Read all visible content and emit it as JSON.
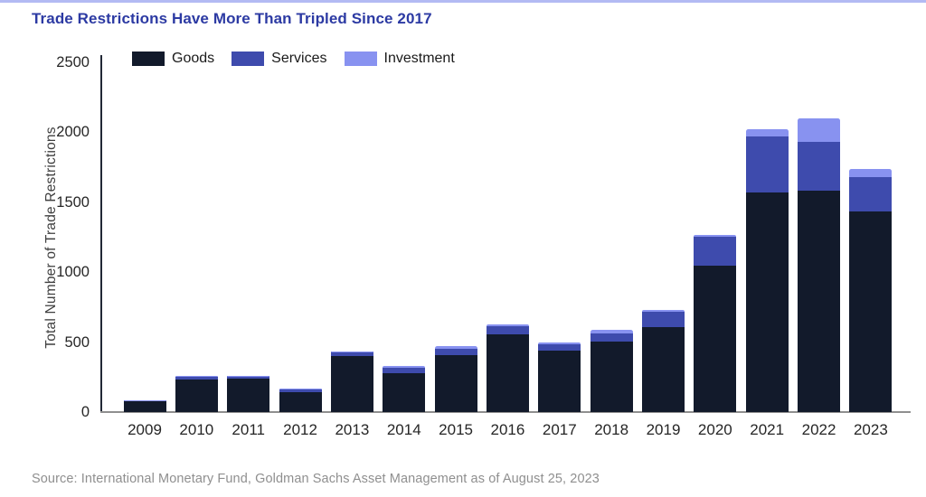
{
  "title": "Trade Restrictions Have More Than Tripled Since 2017",
  "source": "Source: International Monetary Fund, Goldman Sachs Asset Management as of August 25, 2023",
  "colors": {
    "title": "#2c3aa3",
    "goods": "#121a2b",
    "services": "#3e4bad",
    "investment": "#8892f0",
    "top_rule": "#b3baf3",
    "axis_y": "#222836",
    "axis_x": "#8f8f8f",
    "tick_text": "#262626",
    "source_text": "#8f8f8f"
  },
  "chart_data": {
    "type": "bar",
    "stacked": true,
    "title": "Trade Restrictions Have More Than Tripled Since 2017",
    "xlabel": "",
    "ylabel": "Total Number of Trade Restrictions",
    "ylim": [
      0,
      2500
    ],
    "yticks": [
      0,
      500,
      1000,
      1500,
      2000,
      2500
    ],
    "grid": false,
    "legend_position": "top-left",
    "categories": [
      "2009",
      "2010",
      "2011",
      "2012",
      "2013",
      "2014",
      "2015",
      "2016",
      "2017",
      "2018",
      "2019",
      "2020",
      "2021",
      "2022",
      "2023"
    ],
    "series": [
      {
        "name": "Goods",
        "color": "#121a2b",
        "values": [
          75,
          235,
          240,
          145,
          400,
          280,
          405,
          555,
          440,
          505,
          605,
          1045,
          1570,
          1580,
          1430
        ]
      },
      {
        "name": "Services",
        "color": "#3e4bad",
        "values": [
          8,
          15,
          15,
          15,
          30,
          35,
          45,
          60,
          45,
          55,
          110,
          205,
          400,
          350,
          245
        ]
      },
      {
        "name": "Investment",
        "color": "#8892f0",
        "values": [
          2,
          5,
          5,
          5,
          5,
          15,
          20,
          10,
          10,
          30,
          15,
          15,
          50,
          170,
          60
        ]
      }
    ],
    "totals": [
      85,
      255,
      260,
      165,
      435,
      330,
      470,
      625,
      495,
      590,
      730,
      1265,
      2020,
      2100,
      1735
    ]
  }
}
